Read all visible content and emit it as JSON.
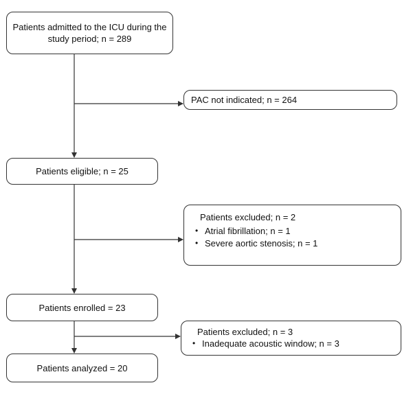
{
  "flowchart": {
    "admitted": "Patients admitted to the ICU during the study period; n = 289",
    "pac_not_indicated": "PAC not indicated; n = 264",
    "eligible": "Patients eligible; n = 25",
    "excluded_1": {
      "title": "Patients excluded; n = 2",
      "items": [
        "Atrial fibrillation; n = 1",
        "Severe aortic stenosis; n = 1"
      ]
    },
    "enrolled": "Patients enrolled = 23",
    "excluded_2": {
      "title": "Patients excluded; n = 3",
      "items": [
        "Inadequate acoustic window; n = 3"
      ]
    },
    "analyzed": "Patients analyzed = 20"
  }
}
